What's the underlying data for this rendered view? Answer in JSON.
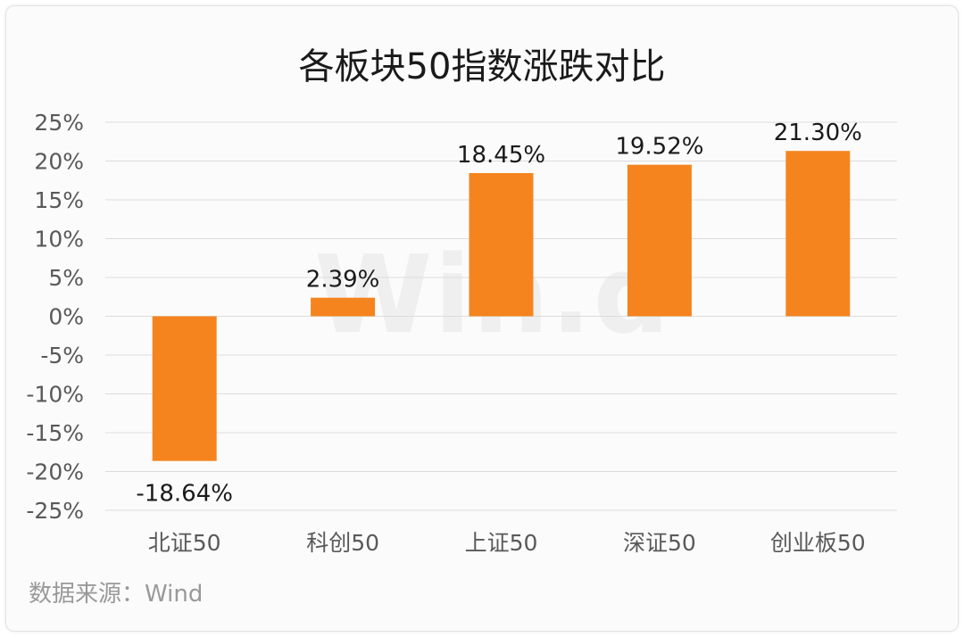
{
  "chart_data": {
    "type": "bar",
    "title": "各板块50指数涨跌对比",
    "categories": [
      "北证50",
      "科创50",
      "上证50",
      "深证50",
      "创业板50"
    ],
    "values": [
      -18.64,
      2.39,
      18.45,
      19.52,
      21.3
    ],
    "data_labels": [
      "-18.64%",
      "2.39%",
      "18.45%",
      "19.52%",
      "21.30%"
    ],
    "ylim": [
      -25,
      25
    ],
    "yticks": [
      25,
      20,
      15,
      10,
      5,
      0,
      -5,
      -10,
      -15,
      -20,
      -25
    ],
    "ytick_labels": [
      "25%",
      "20%",
      "15%",
      "10%",
      "5%",
      "0%",
      "-5%",
      "-10%",
      "-15%",
      "-20%",
      "-25%"
    ],
    "xlabel": "",
    "ylabel": "",
    "grid": true,
    "legend": "none",
    "bar_color": "#f5841f"
  },
  "watermark": "Win.d",
  "source": "数据来源：Wind"
}
